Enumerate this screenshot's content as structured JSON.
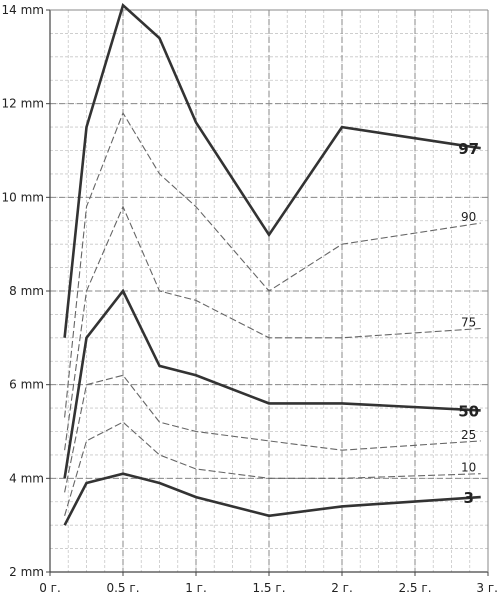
{
  "chart_data": {
    "type": "line",
    "title": "",
    "xlabel": "",
    "ylabel": "",
    "x": [
      0.1,
      0.25,
      0.5,
      0.75,
      1,
      1.5,
      2,
      2.95
    ],
    "xlim": [
      0,
      3
    ],
    "ylim": [
      2,
      14
    ],
    "x_major_ticks": [
      0,
      0.5,
      1,
      1.5,
      2,
      2.5,
      3
    ],
    "x_tick_labels": [
      "0 г.",
      "0.5 г.",
      "1 г.",
      "1.5 г.",
      "2 г.",
      "2.5 г.",
      "3 г."
    ],
    "y_major_ticks": [
      2,
      4,
      6,
      8,
      10,
      12,
      14
    ],
    "y_tick_labels": [
      "2 mm",
      "4 mm",
      "6 mm",
      "8 mm",
      "10 mm",
      "12 mm",
      "14 mm"
    ],
    "grid": true,
    "series": [
      {
        "name": "97",
        "style": "solid-bold",
        "values": [
          7.0,
          11.5,
          14.1,
          13.4,
          11.6,
          9.2,
          11.5,
          11.05
        ]
      },
      {
        "name": "90",
        "style": "dashed",
        "values": [
          5.3,
          9.8,
          11.8,
          10.5,
          9.8,
          8.0,
          9.0,
          9.45
        ]
      },
      {
        "name": "75",
        "style": "dashed",
        "values": [
          4.6,
          8.0,
          9.8,
          8.0,
          7.8,
          7.0,
          7.0,
          7.2
        ]
      },
      {
        "name": "50",
        "style": "solid-bold",
        "values": [
          4.0,
          7.0,
          8.0,
          6.4,
          6.2,
          5.6,
          5.6,
          5.45
        ]
      },
      {
        "name": "25",
        "style": "dashed",
        "values": [
          3.7,
          6.0,
          6.2,
          5.2,
          5.0,
          4.8,
          4.6,
          4.8
        ]
      },
      {
        "name": "10",
        "style": "dashed",
        "values": [
          3.2,
          4.8,
          5.2,
          4.5,
          4.2,
          4.0,
          4.0,
          4.1
        ]
      },
      {
        "name": "3",
        "style": "solid-bold",
        "values": [
          3.0,
          3.9,
          4.1,
          3.9,
          3.6,
          3.2,
          3.4,
          3.6
        ]
      }
    ],
    "colors": {
      "solid": "#333333",
      "dashed": "#666666",
      "grid_major": "#8a8a8a",
      "grid_minor": "#c8c8c8"
    }
  }
}
